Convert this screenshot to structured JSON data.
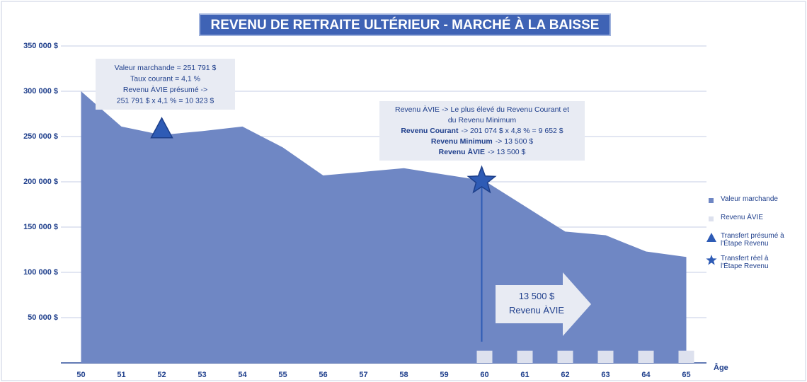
{
  "chart_data": {
    "type": "area",
    "title": "REVENU DE RETRAITE ULTÉRIEUR - MARCHÉ À LA BAISSE",
    "x_label": "Âge",
    "categories": [
      "50",
      "51",
      "52",
      "53",
      "54",
      "55",
      "56",
      "57",
      "58",
      "59",
      "60",
      "61",
      "62",
      "63",
      "64",
      "65"
    ],
    "ylim": [
      0,
      350000
    ],
    "yticks": [
      {
        "value": 50000,
        "label": "50 000 $"
      },
      {
        "value": 100000,
        "label": "100 000 $"
      },
      {
        "value": 150000,
        "label": "150 000 $"
      },
      {
        "value": 200000,
        "label": "200 000 $"
      },
      {
        "value": 250000,
        "label": "250 000 $"
      },
      {
        "value": 300000,
        "label": "300 000 $"
      },
      {
        "value": 350000,
        "label": "350 000 $"
      }
    ],
    "grid": true,
    "legend": "right",
    "series": [
      {
        "name": "Valeur marchande",
        "type": "area",
        "color": "#6f87c4",
        "values": [
          300000,
          261000,
          251791,
          256000,
          261000,
          238000,
          207000,
          211000,
          215000,
          208000,
          201074,
          173000,
          145000,
          141000,
          123000,
          117000
        ]
      },
      {
        "name": "Revenu ÀVIE",
        "type": "bar",
        "color": "#dde1ee",
        "values": [
          null,
          null,
          null,
          null,
          null,
          null,
          null,
          null,
          null,
          null,
          13500,
          13500,
          13500,
          13500,
          13500,
          13500
        ]
      },
      {
        "name": "Transfert présumé à l'Étape Revenu",
        "type": "marker",
        "marker": "triangle",
        "color": "#2e5bb5",
        "values": [
          null,
          null,
          258000,
          null,
          null,
          null,
          null,
          null,
          null,
          null,
          null,
          null,
          null,
          null,
          null,
          null
        ]
      },
      {
        "name": "Transfert réel à l'Étape Revenu",
        "type": "marker",
        "marker": "star",
        "color": "#2e5bb5",
        "values": [
          null,
          null,
          null,
          null,
          null,
          null,
          null,
          null,
          null,
          null,
          201074,
          null,
          null,
          null,
          null,
          null
        ]
      }
    ],
    "annotations": [
      {
        "lines": [
          {
            "rest": "Valeur marchande = 251 791 $"
          },
          {
            "rest": "Taux courant = 4,1 %"
          },
          {
            "rest": "Revenu ÀVIE présumé ->"
          },
          {
            "rest": "251 791 $ x 4,1 % = 10 323 $"
          }
        ]
      },
      {
        "lines": [
          {
            "rest": "Revenu ÀVIE -> Le plus élevé du Revenu Courant et"
          },
          {
            "rest": "du Revenu Minimum"
          },
          {
            "bold": "Revenu Courant",
            "rest": "-> 201 074 $ x 4,8 % = 9 652 $"
          },
          {
            "bold": "Revenu Minimum",
            "rest": "-> 13 500 $"
          },
          {
            "bold": "Revenu ÀVIE",
            "rest": "-> 13 500 $"
          }
        ]
      },
      {
        "lines": [
          {
            "rest": "13 500 $"
          },
          {
            "rest": "Revenu ÀVIE"
          }
        ]
      }
    ]
  }
}
